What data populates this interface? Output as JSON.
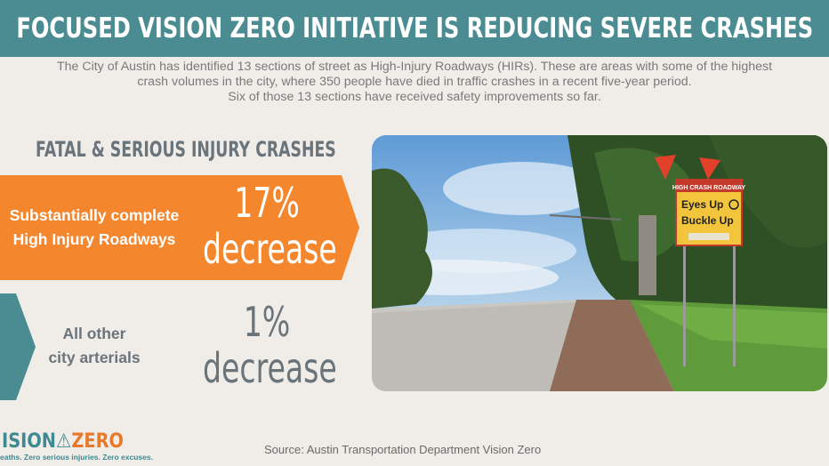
{
  "header": {
    "title": "FOCUSED VISION ZERO INITIATIVE IS REDUCING SEVERE CRASHES"
  },
  "intro": {
    "line1": "The City of Austin has identified 13 sections of street as High-Injury Roadways (HIRs). These are areas with some of the highest",
    "line2": "crash volumes in the city, where 350 people have died in traffic crashes in a recent five-year period.",
    "line3": "Six of those 13 sections have received safety improvements so far."
  },
  "section_title": "FATAL & SERIOUS INJURY CRASHES",
  "categories": [
    {
      "label_line1": "Substantially complete",
      "label_line2": "High Injury Roadways",
      "pct": "17%",
      "word": "decrease",
      "band_color": "#f4862d"
    },
    {
      "label_line1": "All other",
      "label_line2": "city arterials",
      "pct": "1%",
      "word": "decrease",
      "band_color": "#4a8c91"
    }
  ],
  "photo": {
    "sign_title": "HIGH CRASH ROADWAY",
    "sign_line1": "Eyes Up",
    "sign_line2": "Buckle Up"
  },
  "logo": {
    "part1": "ISION",
    "part2": "ZERO",
    "tagline": "eaths. Zero serious injuries. Zero excuses."
  },
  "source": "Source: Austin Transportation Department Vision Zero",
  "colors": {
    "teal": "#4a8c91",
    "orange": "#f4862d",
    "gray_text": "#6a747b",
    "background": "#f0ece7"
  }
}
